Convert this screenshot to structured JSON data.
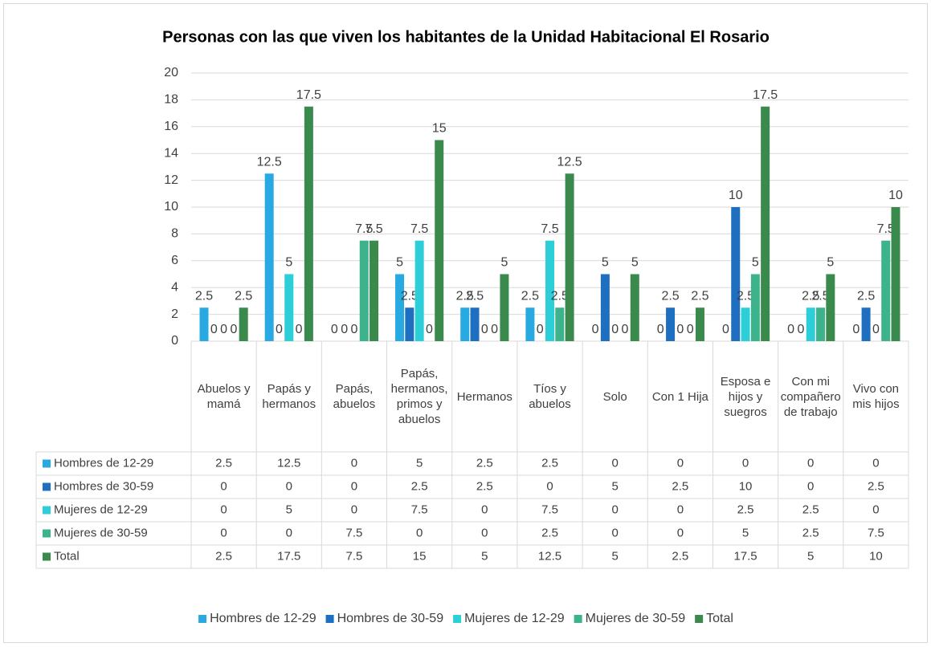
{
  "chart_data": {
    "type": "bar",
    "title": "Personas con las que viven los habitantes de la Unidad Habitacional El Rosario",
    "categories": [
      "Abuelos y mamá",
      "Papás y hermanos",
      "Papás, abuelos",
      "Papás, hermanos, primos y abuelos",
      "Hermanos",
      "Tíos y abuelos",
      "Solo",
      "Con 1 Hija",
      "Esposa e hijos y suegros",
      "Con mi compañero de trabajo",
      "Vivo con mis hijos"
    ],
    "series": [
      {
        "name": "Hombres de 12-29",
        "color": "#29a9e1",
        "values": [
          2.5,
          12.5,
          0,
          5,
          2.5,
          2.5,
          0,
          0,
          0,
          0,
          0
        ]
      },
      {
        "name": "Hombres de 30-59",
        "color": "#1f6fc0",
        "values": [
          0,
          0,
          0,
          2.5,
          2.5,
          0,
          5,
          2.5,
          10,
          0,
          2.5
        ]
      },
      {
        "name": "Mujeres de 12-29",
        "color": "#2ccfd7",
        "values": [
          0,
          5,
          0,
          7.5,
          0,
          7.5,
          0,
          0,
          2.5,
          2.5,
          0
        ]
      },
      {
        "name": "Mujeres de 30-59",
        "color": "#3cb38b",
        "values": [
          0,
          0,
          7.5,
          0,
          0,
          2.5,
          0,
          0,
          5,
          2.5,
          7.5
        ]
      },
      {
        "name": "Total",
        "color": "#3a8a4e",
        "values": [
          2.5,
          17.5,
          7.5,
          15,
          5,
          12.5,
          5,
          2.5,
          17.5,
          5,
          10
        ]
      }
    ],
    "ylim": [
      0,
      20
    ],
    "yticks": [
      0,
      2,
      4,
      6,
      8,
      10,
      12,
      14,
      16,
      18,
      20
    ],
    "grid": true,
    "legend": "bottom"
  }
}
